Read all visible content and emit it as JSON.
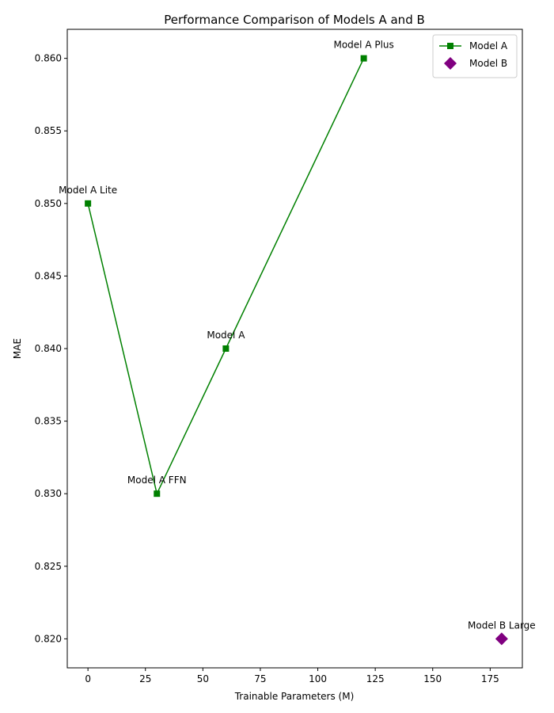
{
  "chart_data": {
    "type": "line",
    "title": "Performance Comparison of Models A and B",
    "xlabel": "Trainable Parameters (M)",
    "ylabel": "MAE",
    "xlim": [
      -9,
      189
    ],
    "ylim": [
      0.818,
      0.862
    ],
    "xticks": [
      0,
      25,
      50,
      75,
      100,
      125,
      150,
      175
    ],
    "yticks": [
      0.82,
      0.825,
      0.83,
      0.835,
      0.84,
      0.845,
      0.85,
      0.855,
      0.86
    ],
    "grid": false,
    "legend": "top-right",
    "series": [
      {
        "name": "Model A",
        "color": "#008000",
        "marker": "square",
        "line": true,
        "points": [
          {
            "x": 0,
            "y": 0.85,
            "label": "Model A Lite"
          },
          {
            "x": 30,
            "y": 0.83,
            "label": "Model A FFN"
          },
          {
            "x": 60,
            "y": 0.84,
            "label": "Model A"
          },
          {
            "x": 120,
            "y": 0.86,
            "label": "Model A Plus"
          }
        ]
      },
      {
        "name": "Model B",
        "color": "#800080",
        "marker": "diamond",
        "line": false,
        "points": [
          {
            "x": 180,
            "y": 0.82,
            "label": "Model B Large"
          }
        ]
      }
    ]
  }
}
